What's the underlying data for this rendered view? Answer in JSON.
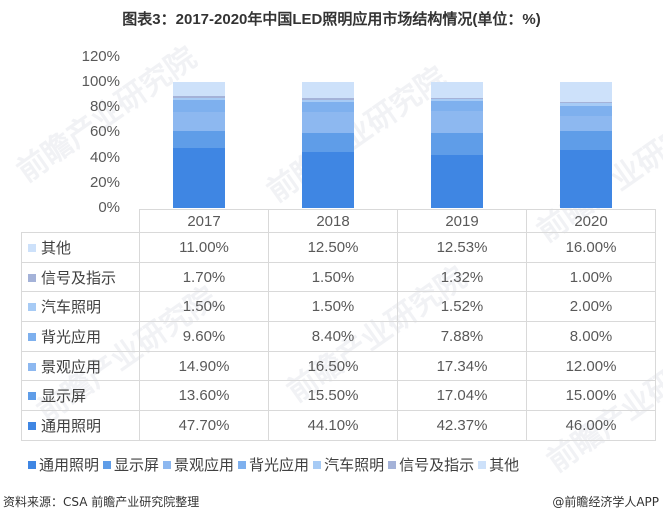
{
  "title": "图表3：2017-2020年中国LED照明应用市场结构情况(单位：%)",
  "watermark": "前瞻产业研究院",
  "chart_data": {
    "type": "bar",
    "stacked": true,
    "title": "图表3：2017-2020年中国LED照明应用市场结构情况(单位：%)",
    "xlabel": "",
    "ylabel": "",
    "ylim": [
      0,
      120
    ],
    "yticks": [
      "0%",
      "20%",
      "40%",
      "60%",
      "80%",
      "100%",
      "120%"
    ],
    "categories": [
      "2017",
      "2018",
      "2019",
      "2020"
    ],
    "series": [
      {
        "name": "通用照明",
        "color": "#3f86e3",
        "values": [
          47.7,
          44.1,
          42.37,
          46.0
        ]
      },
      {
        "name": "显示屏",
        "color": "#5f9de8",
        "values": [
          13.6,
          15.5,
          17.04,
          15.0
        ]
      },
      {
        "name": "景观应用",
        "color": "#8db8f0",
        "values": [
          14.9,
          16.5,
          17.34,
          12.0
        ]
      },
      {
        "name": "背光应用",
        "color": "#7eb0ee",
        "values": [
          9.6,
          8.4,
          7.88,
          8.0
        ]
      },
      {
        "name": "汽车照明",
        "color": "#a7cbf5",
        "values": [
          1.5,
          1.5,
          1.52,
          2.0
        ]
      },
      {
        "name": "信号及指示",
        "color": "#a4b2d8",
        "values": [
          1.7,
          1.5,
          1.32,
          1.0
        ]
      },
      {
        "name": "其他",
        "color": "#cde1fa",
        "values": [
          11.0,
          12.5,
          12.53,
          16.0
        ]
      }
    ],
    "legend_position": "bottom",
    "grid": false,
    "data_table": true
  },
  "table": {
    "header": [
      "2017",
      "2018",
      "2019",
      "2020"
    ],
    "rows": [
      {
        "label": "其他",
        "color": "#cde1fa",
        "cells": [
          "11.00%",
          "12.50%",
          "12.53%",
          "16.00%"
        ]
      },
      {
        "label": "信号及指示",
        "color": "#a4b2d8",
        "cells": [
          "1.70%",
          "1.50%",
          "1.32%",
          "1.00%"
        ]
      },
      {
        "label": "汽车照明",
        "color": "#a7cbf5",
        "cells": [
          "1.50%",
          "1.50%",
          "1.52%",
          "2.00%"
        ]
      },
      {
        "label": "背光应用",
        "color": "#7eb0ee",
        "cells": [
          "9.60%",
          "8.40%",
          "7.88%",
          "8.00%"
        ]
      },
      {
        "label": "景观应用",
        "color": "#8db8f0",
        "cells": [
          "14.90%",
          "16.50%",
          "17.34%",
          "12.00%"
        ]
      },
      {
        "label": "显示屏",
        "color": "#5f9de8",
        "cells": [
          "13.60%",
          "15.50%",
          "17.04%",
          "15.00%"
        ]
      },
      {
        "label": "通用照明",
        "color": "#3f86e3",
        "cells": [
          "47.70%",
          "44.10%",
          "42.37%",
          "46.00%"
        ]
      }
    ]
  },
  "legend": [
    {
      "label": "通用照明",
      "color": "#3f86e3"
    },
    {
      "label": "显示屏",
      "color": "#5f9de8"
    },
    {
      "label": "景观应用",
      "color": "#8db8f0"
    },
    {
      "label": "背光应用",
      "color": "#7eb0ee"
    },
    {
      "label": "汽车照明",
      "color": "#a7cbf5"
    },
    {
      "label": "信号及指示",
      "color": "#a4b2d8"
    },
    {
      "label": "其他",
      "color": "#cde1fa"
    }
  ],
  "footer": {
    "source_label": "资料来源：",
    "source_text": "CSA 前瞻产业研究院整理",
    "credit": "@前瞻经济学人APP"
  }
}
